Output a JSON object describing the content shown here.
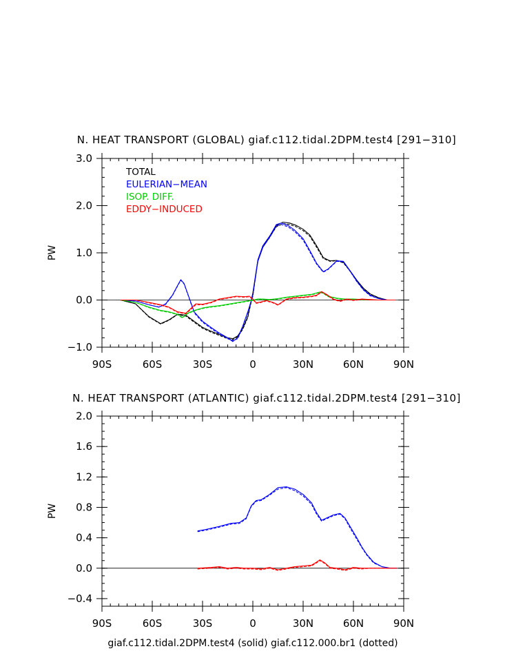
{
  "chart_data": [
    {
      "type": "line",
      "title": "N. HEAT TRANSPORT (GLOBAL) giaf.c112.tidal.2DPM.test4 [291−310]",
      "xlabel": "",
      "ylabel": "PW",
      "xlim": [
        -90,
        90
      ],
      "ylim": [
        -1.0,
        3.0
      ],
      "xticks": [
        {
          "v": -90,
          "label": "90S"
        },
        {
          "v": -60,
          "label": "60S"
        },
        {
          "v": -30,
          "label": "30S"
        },
        {
          "v": 0,
          "label": "0"
        },
        {
          "v": 30,
          "label": "30N"
        },
        {
          "v": 60,
          "label": "60N"
        },
        {
          "v": 90,
          "label": "90N"
        }
      ],
      "yticks": [
        {
          "v": -1.0,
          "label": "−1.0"
        },
        {
          "v": 0.0,
          "label": "0.0"
        },
        {
          "v": 1.0,
          "label": "1.0"
        },
        {
          "v": 2.0,
          "label": "2.0"
        },
        {
          "v": 3.0,
          "label": "3.0"
        }
      ],
      "legend": [
        "TOTAL",
        "EULERIAN−MEAN",
        "ISOP. DIFF.",
        "EDDY−INDUCED"
      ],
      "series": [
        {
          "name": "TOTAL",
          "color": "#000000",
          "style": "solid",
          "x": [
            -79,
            -70,
            -62,
            -55,
            -50,
            -45,
            -40,
            -35,
            -30,
            -25,
            -20,
            -15,
            -12,
            -9,
            -6,
            -3,
            0,
            3,
            6,
            10,
            14,
            18,
            22,
            26,
            30,
            34,
            38,
            42,
            46,
            50,
            54,
            58,
            62,
            66,
            70,
            75,
            80,
            85
          ],
          "y": [
            0.0,
            -0.08,
            -0.35,
            -0.5,
            -0.42,
            -0.3,
            -0.32,
            -0.45,
            -0.58,
            -0.66,
            -0.73,
            -0.8,
            -0.82,
            -0.76,
            -0.6,
            -0.35,
            0.15,
            0.85,
            1.15,
            1.35,
            1.58,
            1.65,
            1.63,
            1.58,
            1.5,
            1.38,
            1.15,
            0.9,
            0.83,
            0.84,
            0.8,
            0.62,
            0.42,
            0.25,
            0.13,
            0.05,
            0.0,
            0.0
          ]
        },
        {
          "name": "TOTAL",
          "color": "#000000",
          "style": "dashed",
          "x": [
            -79,
            -70,
            -62,
            -55,
            -50,
            -45,
            -40,
            -35,
            -30,
            -25,
            -20,
            -15,
            -12,
            -9,
            -6,
            -3,
            0,
            3,
            6,
            10,
            14,
            18,
            22,
            26,
            30,
            34,
            38,
            42,
            46,
            50,
            54,
            58,
            62,
            66,
            70,
            75,
            80,
            85
          ],
          "y": [
            0.0,
            -0.08,
            -0.36,
            -0.51,
            -0.43,
            -0.31,
            -0.34,
            -0.47,
            -0.6,
            -0.68,
            -0.75,
            -0.82,
            -0.84,
            -0.78,
            -0.62,
            -0.37,
            0.12,
            0.82,
            1.12,
            1.33,
            1.55,
            1.62,
            1.6,
            1.55,
            1.47,
            1.35,
            1.12,
            0.88,
            0.82,
            0.83,
            0.79,
            0.61,
            0.41,
            0.24,
            0.12,
            0.05,
            0.0,
            0.0
          ]
        },
        {
          "name": "EULERIAN−MEAN",
          "color": "#0000ff",
          "style": "solid",
          "x": [
            -79,
            -70,
            -62,
            -56,
            -52,
            -48,
            -45,
            -43,
            -41,
            -38,
            -35,
            -30,
            -25,
            -20,
            -15,
            -12,
            -9,
            -6,
            -3,
            0,
            3,
            6,
            10,
            14,
            17,
            21,
            25,
            30,
            34,
            38,
            42,
            45,
            50,
            54,
            58,
            62,
            66,
            70,
            75,
            80,
            85
          ],
          "y": [
            0.0,
            -0.02,
            -0.1,
            -0.15,
            -0.08,
            0.1,
            0.3,
            0.43,
            0.35,
            0.05,
            -0.25,
            -0.45,
            -0.58,
            -0.7,
            -0.8,
            -0.88,
            -0.8,
            -0.55,
            -0.25,
            0.1,
            0.85,
            1.15,
            1.35,
            1.6,
            1.63,
            1.58,
            1.48,
            1.3,
            1.05,
            0.78,
            0.6,
            0.66,
            0.83,
            0.82,
            0.62,
            0.4,
            0.22,
            0.1,
            0.03,
            0.0,
            0.0
          ]
        },
        {
          "name": "EULERIAN−MEAN",
          "color": "#0000ff",
          "style": "dashed",
          "x": [
            -79,
            -70,
            -62,
            -56,
            -52,
            -48,
            -45,
            -43,
            -41,
            -38,
            -35,
            -30,
            -25,
            -20,
            -15,
            -12,
            -9,
            -6,
            -3,
            0,
            3,
            6,
            10,
            14,
            17,
            21,
            25,
            30,
            34,
            38,
            42,
            45,
            50,
            54,
            58,
            62,
            66,
            70,
            75,
            80,
            85
          ],
          "y": [
            0.0,
            -0.02,
            -0.1,
            -0.15,
            -0.09,
            0.09,
            0.29,
            0.42,
            0.34,
            0.04,
            -0.27,
            -0.47,
            -0.6,
            -0.72,
            -0.82,
            -0.86,
            -0.82,
            -0.57,
            -0.27,
            0.08,
            0.82,
            1.12,
            1.32,
            1.57,
            1.6,
            1.55,
            1.45,
            1.27,
            1.02,
            0.76,
            0.59,
            0.65,
            0.82,
            0.81,
            0.61,
            0.39,
            0.21,
            0.09,
            0.03,
            0.0,
            0.0
          ]
        },
        {
          "name": "ISOP. DIFF.",
          "color": "#00cc00",
          "style": "solid",
          "x": [
            -79,
            -70,
            -62,
            -55,
            -50,
            -45,
            -42,
            -39,
            -35,
            -30,
            -25,
            -20,
            -15,
            -10,
            -5,
            0,
            3,
            6,
            10,
            15,
            20,
            25,
            30,
            35,
            40,
            42,
            45,
            50,
            55,
            60,
            65,
            70,
            75,
            80,
            85
          ],
          "y": [
            0.0,
            -0.05,
            -0.15,
            -0.22,
            -0.25,
            -0.3,
            -0.37,
            -0.28,
            -0.22,
            -0.17,
            -0.14,
            -0.12,
            -0.09,
            -0.06,
            -0.03,
            0.0,
            0.02,
            0.02,
            0.01,
            0.03,
            0.06,
            0.08,
            0.1,
            0.12,
            0.17,
            0.15,
            0.08,
            0.04,
            0.02,
            0.02,
            0.01,
            0.01,
            0.0,
            0.0,
            0.0
          ]
        },
        {
          "name": "ISOP. DIFF.",
          "color": "#00cc00",
          "style": "dashed",
          "x": [
            -79,
            -70,
            -62,
            -55,
            -50,
            -45,
            -42,
            -39,
            -35,
            -30,
            -25,
            -20,
            -15,
            -10,
            -5,
            0,
            3,
            6,
            10,
            15,
            20,
            25,
            30,
            35,
            40,
            42,
            45,
            50,
            55,
            60,
            65,
            70,
            75,
            80,
            85
          ],
          "y": [
            0.0,
            -0.05,
            -0.16,
            -0.23,
            -0.26,
            -0.31,
            -0.38,
            -0.29,
            -0.23,
            -0.18,
            -0.15,
            -0.13,
            -0.1,
            -0.07,
            -0.04,
            -0.01,
            0.01,
            0.01,
            0.0,
            0.02,
            0.05,
            0.07,
            0.09,
            0.11,
            0.16,
            0.14,
            0.07,
            0.03,
            0.01,
            0.01,
            0.0,
            0.0,
            0.0,
            0.0,
            0.0
          ]
        },
        {
          "name": "EDDY−INDUCED",
          "color": "#ff0000",
          "style": "solid",
          "x": [
            -79,
            -70,
            -62,
            -55,
            -50,
            -45,
            -40,
            -37,
            -34,
            -30,
            -25,
            -20,
            -15,
            -10,
            -5,
            -2,
            0,
            2,
            5,
            8,
            12,
            15,
            20,
            25,
            30,
            35,
            38,
            41,
            44,
            48,
            52,
            56,
            60,
            65,
            70,
            75,
            80,
            85
          ],
          "y": [
            0.0,
            0.0,
            -0.05,
            -0.1,
            -0.15,
            -0.25,
            -0.28,
            -0.18,
            -0.08,
            -0.09,
            -0.05,
            0.02,
            0.05,
            0.08,
            0.07,
            0.08,
            0.02,
            -0.06,
            -0.04,
            -0.01,
            -0.05,
            -0.1,
            0.02,
            0.05,
            0.06,
            0.08,
            0.1,
            0.18,
            0.12,
            0.02,
            -0.02,
            0.02,
            0.0,
            0.02,
            0.01,
            0.0,
            0.0,
            0.0
          ]
        },
        {
          "name": "EDDY−INDUCED",
          "color": "#ff0000",
          "style": "dashed",
          "x": [
            -79,
            -70,
            -62,
            -55,
            -50,
            -45,
            -40,
            -37,
            -34,
            -30,
            -25,
            -20,
            -15,
            -10,
            -5,
            -2,
            0,
            2,
            5,
            8,
            12,
            15,
            20,
            25,
            30,
            35,
            38,
            41,
            44,
            48,
            52,
            56,
            60,
            65,
            70,
            75,
            80,
            85
          ],
          "y": [
            0.0,
            0.0,
            -0.06,
            -0.11,
            -0.16,
            -0.26,
            -0.29,
            -0.2,
            -0.1,
            -0.1,
            -0.06,
            0.01,
            0.04,
            0.07,
            0.06,
            0.07,
            0.01,
            -0.07,
            -0.05,
            -0.02,
            -0.06,
            -0.11,
            0.01,
            0.04,
            0.05,
            0.07,
            0.09,
            0.17,
            0.11,
            0.01,
            -0.03,
            0.01,
            -0.01,
            0.01,
            0.0,
            0.0,
            0.0,
            0.0
          ]
        }
      ]
    },
    {
      "type": "line",
      "title": "N. HEAT TRANSPORT (ATLANTIC) giaf.c112.tidal.2DPM.test4 [291−310]",
      "xlabel": "giaf.c112.tidal.2DPM.test4 (solid) giaf.c112.000.br1 (dotted)",
      "ylabel": "PW",
      "xlim": [
        -90,
        90
      ],
      "ylim": [
        -0.5,
        2.0
      ],
      "xticks": [
        {
          "v": -90,
          "label": "90S"
        },
        {
          "v": -60,
          "label": "60S"
        },
        {
          "v": -30,
          "label": "30S"
        },
        {
          "v": 0,
          "label": "0"
        },
        {
          "v": 30,
          "label": "30N"
        },
        {
          "v": 60,
          "label": "60N"
        },
        {
          "v": 90,
          "label": "90N"
        }
      ],
      "yticks": [
        {
          "v": -0.4,
          "label": "−0.4"
        },
        {
          "v": 0.0,
          "label": "0.0"
        },
        {
          "v": 0.4,
          "label": "0.4"
        },
        {
          "v": 0.8,
          "label": "0.8"
        },
        {
          "v": 1.2,
          "label": "1.2"
        },
        {
          "v": 1.6,
          "label": "1.6"
        },
        {
          "v": 2.0,
          "label": "2.0"
        }
      ],
      "series": [
        {
          "name": "EULERIAN−MEAN",
          "color": "#0000ff",
          "style": "solid",
          "x": [
            -33,
            -28,
            -20,
            -13,
            -8,
            -4,
            -1,
            2,
            5,
            10,
            15,
            20,
            25,
            30,
            35,
            38,
            41,
            44,
            48,
            52,
            55,
            58,
            62,
            65,
            68,
            72,
            77,
            82,
            86
          ],
          "y": [
            0.49,
            0.51,
            0.55,
            0.59,
            0.6,
            0.66,
            0.82,
            0.89,
            0.9,
            0.97,
            1.06,
            1.07,
            1.04,
            0.97,
            0.86,
            0.73,
            0.63,
            0.66,
            0.7,
            0.72,
            0.66,
            0.55,
            0.4,
            0.28,
            0.18,
            0.08,
            0.02,
            0.0,
            0.0
          ]
        },
        {
          "name": "EULERIAN−MEAN",
          "color": "#0000ff",
          "style": "dashed",
          "x": [
            -33,
            -28,
            -20,
            -13,
            -8,
            -4,
            -1,
            2,
            5,
            10,
            15,
            20,
            25,
            30,
            35,
            38,
            41,
            44,
            48,
            52,
            55,
            58,
            62,
            65,
            68,
            72,
            77,
            82,
            86
          ],
          "y": [
            0.48,
            0.5,
            0.54,
            0.58,
            0.59,
            0.65,
            0.81,
            0.88,
            0.89,
            0.96,
            1.04,
            1.06,
            1.02,
            0.95,
            0.84,
            0.71,
            0.62,
            0.65,
            0.69,
            0.71,
            0.65,
            0.53,
            0.38,
            0.27,
            0.17,
            0.07,
            0.02,
            0.0,
            0.0
          ]
        },
        {
          "name": "EDDY−INDUCED",
          "color": "#ff0000",
          "style": "solid",
          "x": [
            -33,
            -25,
            -20,
            -15,
            -10,
            -5,
            0,
            5,
            10,
            15,
            20,
            25,
            30,
            35,
            38,
            40,
            43,
            46,
            50,
            55,
            60,
            65,
            70,
            80,
            86
          ],
          "y": [
            0.0,
            0.01,
            0.02,
            0.0,
            0.01,
            0.0,
            0.0,
            -0.01,
            0.01,
            -0.02,
            0.0,
            0.02,
            0.03,
            0.04,
            0.08,
            0.11,
            0.07,
            0.01,
            0.0,
            -0.02,
            0.01,
            0.0,
            0.0,
            0.0,
            0.0
          ]
        },
        {
          "name": "EDDY−INDUCED",
          "color": "#ff0000",
          "style": "dashed",
          "x": [
            -33,
            -25,
            -20,
            -15,
            -10,
            -5,
            0,
            5,
            10,
            15,
            20,
            25,
            30,
            35,
            38,
            40,
            43,
            46,
            50,
            55,
            60,
            65,
            70,
            80,
            86
          ],
          "y": [
            -0.01,
            0.0,
            0.01,
            -0.01,
            0.0,
            -0.01,
            -0.01,
            -0.02,
            0.0,
            -0.03,
            -0.01,
            0.01,
            0.02,
            0.03,
            0.07,
            0.1,
            0.06,
            0.0,
            -0.01,
            -0.03,
            0.0,
            -0.01,
            0.0,
            0.0,
            0.0
          ]
        }
      ]
    }
  ]
}
